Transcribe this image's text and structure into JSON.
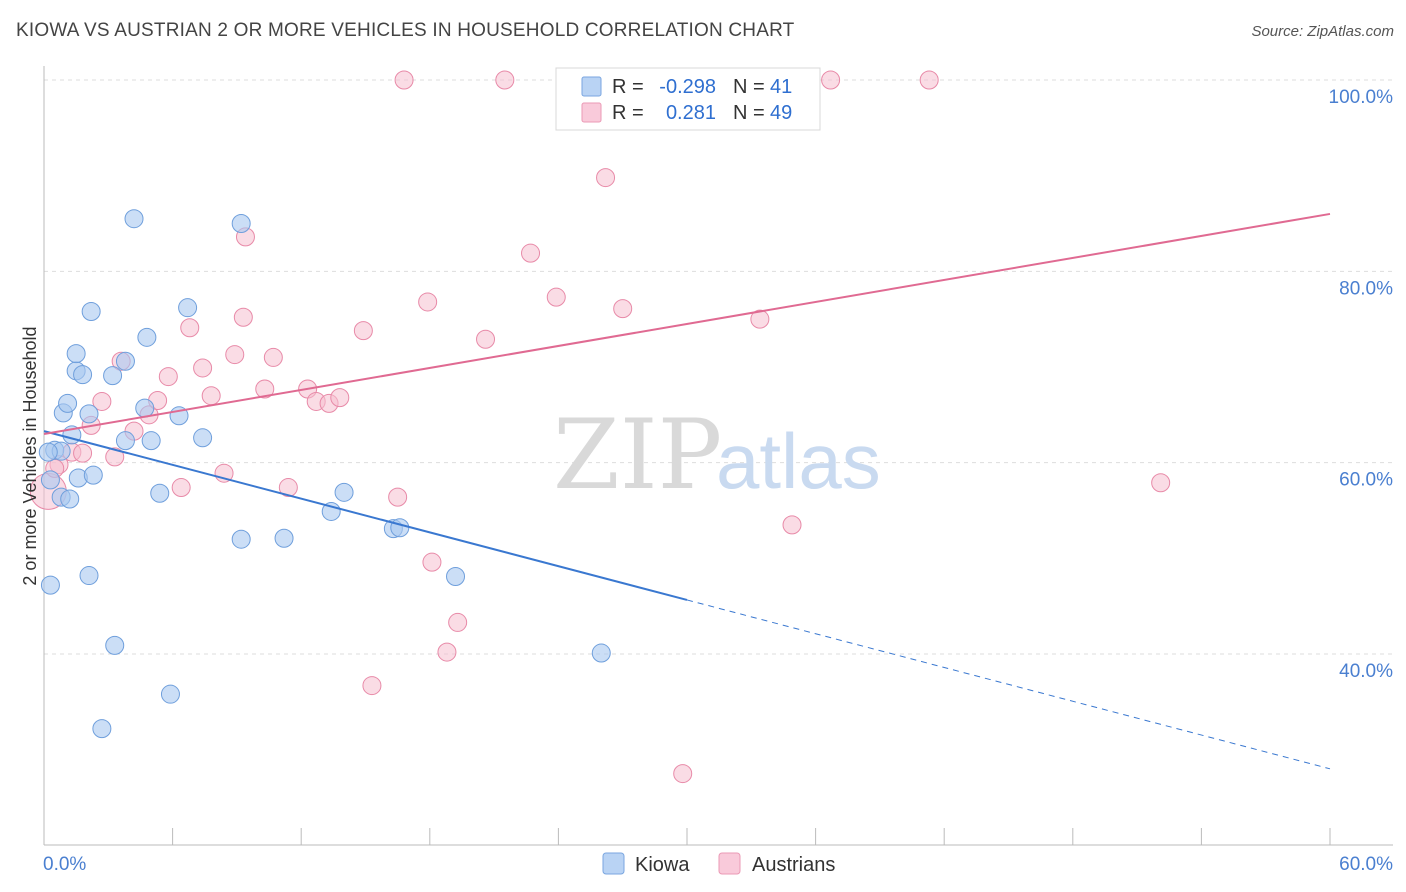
{
  "title": "KIOWA VS AUSTRIAN 2 OR MORE VEHICLES IN HOUSEHOLD CORRELATION CHART",
  "source": "Source: ZipAtlas.com",
  "watermark": {
    "zip": "ZIP",
    "atlas": "atlas"
  },
  "colors": {
    "kiowa_fill": "#a9c8f0",
    "kiowa_stroke": "#6f9fdc",
    "kiowa_line": "#3a78d0",
    "austrians_fill": "#f6bfd0",
    "austrians_stroke": "#e88aa8",
    "austrians_line": "#e06a92",
    "grid": "#dddddd",
    "tick_text": "#4a7fd0"
  },
  "legend": {
    "kiowa": {
      "r_label": "R =",
      "r_value": "-0.298",
      "n_label": "N =",
      "n_value": "41"
    },
    "austrians": {
      "r_label": "R =",
      "r_value": "0.281",
      "n_label": "N =",
      "n_value": "49"
    }
  },
  "chart_data": {
    "type": "scatter",
    "title": "KIOWA VS AUSTRIAN 2 OR MORE VEHICLES IN HOUSEHOLD CORRELATION CHART",
    "xlabel": "",
    "ylabel": "2 or more Vehicles in Household",
    "xlim": [
      0,
      60
    ],
    "ylim": [
      20,
      102
    ],
    "x_tick_labels": {
      "min": "0.0%",
      "max": "60.0%"
    },
    "y_ticks": [
      40,
      60,
      80,
      100
    ],
    "y_tick_labels": [
      "40.0%",
      "60.0%",
      "80.0%",
      "100.0%"
    ],
    "grid": true,
    "legend_position": "top-center",
    "bottom_legend": [
      "Kiowa",
      "Austrians"
    ],
    "series": [
      {
        "name": "Kiowa",
        "r": -0.298,
        "n": 41,
        "trend": {
          "x0": 0,
          "y0": 63.3,
          "x_solid_end": 30,
          "x1": 60,
          "y1": 28.0
        },
        "points": [
          [
            0.3,
            47.2
          ],
          [
            0.3,
            58.2
          ],
          [
            0.5,
            61.3
          ],
          [
            0.8,
            61.2
          ],
          [
            0.8,
            56.4
          ],
          [
            0.9,
            65.2
          ],
          [
            1.1,
            66.2
          ],
          [
            1.2,
            56.2
          ],
          [
            1.3,
            62.9
          ],
          [
            1.5,
            69.6
          ],
          [
            1.5,
            71.4
          ],
          [
            1.6,
            58.4
          ],
          [
            1.8,
            69.2
          ],
          [
            2.1,
            48.2
          ],
          [
            2.1,
            65.1
          ],
          [
            2.2,
            75.8
          ],
          [
            2.3,
            58.7
          ],
          [
            3.2,
            69.1
          ],
          [
            3.3,
            40.9
          ],
          [
            2.7,
            32.2
          ],
          [
            3.8,
            62.3
          ],
          [
            3.8,
            70.6
          ],
          [
            4.2,
            85.5
          ],
          [
            4.7,
            65.7
          ],
          [
            4.8,
            73.1
          ],
          [
            5.0,
            62.3
          ],
          [
            5.4,
            56.8
          ],
          [
            5.9,
            35.8
          ],
          [
            6.3,
            64.9
          ],
          [
            6.7,
            76.2
          ],
          [
            7.4,
            62.6
          ],
          [
            9.2,
            85.0
          ],
          [
            9.2,
            52.0
          ],
          [
            11.2,
            52.1
          ],
          [
            13.4,
            54.9
          ],
          [
            14.0,
            56.9
          ],
          [
            16.3,
            53.1
          ],
          [
            16.6,
            53.2
          ],
          [
            19.2,
            48.1
          ],
          [
            26.0,
            40.1
          ],
          [
            0.2,
            61.1
          ]
        ]
      },
      {
        "name": "Austrians",
        "r": 0.281,
        "n": 49,
        "trend": {
          "x0": 0,
          "y0": 63.0,
          "x1": 60,
          "y1": 86.0
        },
        "points": [
          [
            0.2,
            57.0
          ],
          [
            0.7,
            59.8
          ],
          [
            1.3,
            61.1
          ],
          [
            1.8,
            61.0
          ],
          [
            2.2,
            63.9
          ],
          [
            2.7,
            66.4
          ],
          [
            3.3,
            60.6
          ],
          [
            3.6,
            70.6
          ],
          [
            4.2,
            63.3
          ],
          [
            4.9,
            65.0
          ],
          [
            5.3,
            66.5
          ],
          [
            5.8,
            69.0
          ],
          [
            6.4,
            57.4
          ],
          [
            6.8,
            74.1
          ],
          [
            7.4,
            69.9
          ],
          [
            7.8,
            67.0
          ],
          [
            8.4,
            58.9
          ],
          [
            8.9,
            71.3
          ],
          [
            9.4,
            83.6
          ],
          [
            9.3,
            75.2
          ],
          [
            10.3,
            67.7
          ],
          [
            10.7,
            71.0
          ],
          [
            11.4,
            57.4
          ],
          [
            12.3,
            67.7
          ],
          [
            12.7,
            66.4
          ],
          [
            13.3,
            66.2
          ],
          [
            13.8,
            66.8
          ],
          [
            14.9,
            73.8
          ],
          [
            15.3,
            36.7
          ],
          [
            16.5,
            56.4
          ],
          [
            17.9,
            76.8
          ],
          [
            18.1,
            49.6
          ],
          [
            18.8,
            40.2
          ],
          [
            19.3,
            43.3
          ],
          [
            20.6,
            72.9
          ],
          [
            21.5,
            100.0
          ],
          [
            22.7,
            81.9
          ],
          [
            23.9,
            77.3
          ],
          [
            26.2,
            89.8
          ],
          [
            27.0,
            76.1
          ],
          [
            27.4,
            100.0
          ],
          [
            29.8,
            27.5
          ],
          [
            33.4,
            75.0
          ],
          [
            34.9,
            53.5
          ],
          [
            36.7,
            100.0
          ],
          [
            41.3,
            100.0
          ],
          [
            52.1,
            57.9
          ],
          [
            16.8,
            100.0
          ],
          [
            0.5,
            59.4
          ]
        ]
      }
    ]
  }
}
